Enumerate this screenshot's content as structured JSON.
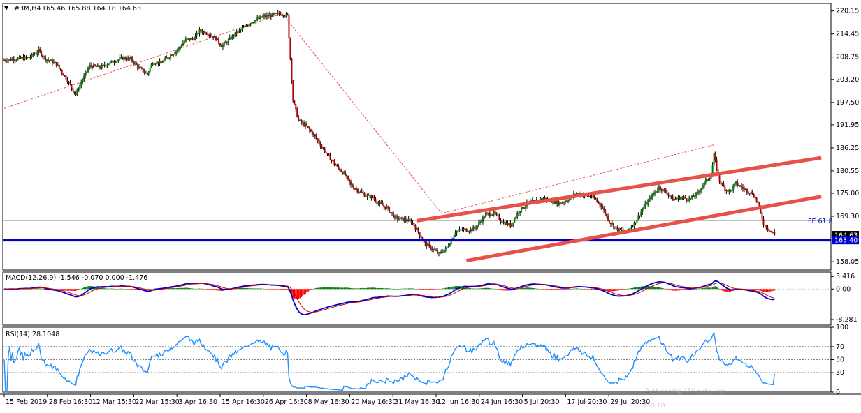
{
  "header": {
    "menu_glyph": "▼",
    "symbol_text": "#3M,H4",
    "ohlc_text": "165.46 165.88 164.18 164.63"
  },
  "chart_data": {
    "type": "candlestick",
    "symbol": "#3M",
    "timeframe": "H4",
    "ohlc": {
      "open": 165.46,
      "high": 165.88,
      "low": 164.18,
      "close": 164.63
    },
    "price_axis": {
      "ylim": [
        156.0,
        222.0
      ],
      "ticks": [
        "220.15",
        "214.45",
        "208.75",
        "203.20",
        "197.50",
        "191.95",
        "186.25",
        "180.55",
        "175.00",
        "169.30",
        "158.05"
      ],
      "tick_values": [
        220.15,
        214.45,
        208.75,
        203.2,
        197.5,
        191.95,
        186.25,
        180.55,
        175.0,
        169.3,
        158.05
      ]
    },
    "time_axis": {
      "labels": [
        "15 Feb 2019",
        "28 Feb 16:30",
        "12 Mar 15:30",
        "22 Mar 15:30",
        "3 Apr 16:30",
        "15 Apr 16:30",
        "26 Apr 16:30",
        "8 May 16:30",
        "20 May 16:30",
        "31 May 16:30",
        "12 Jun 16:30",
        "24 Jun 16:30",
        "5 Jul 20:30",
        "17 Jul 20:30",
        "29 Jul 20:30"
      ]
    },
    "price_path": [
      [
        0,
        208.0
      ],
      [
        8,
        208.3
      ],
      [
        18,
        208.6
      ],
      [
        25,
        210.3
      ],
      [
        30,
        208.3
      ],
      [
        38,
        207.0
      ],
      [
        45,
        203.5
      ],
      [
        52,
        199.5
      ],
      [
        56,
        202.5
      ],
      [
        62,
        206.5
      ],
      [
        70,
        206.2
      ],
      [
        78,
        207.5
      ],
      [
        86,
        208.5
      ],
      [
        92,
        208.2
      ],
      [
        98,
        206.0
      ],
      [
        104,
        204.5
      ],
      [
        108,
        207.5
      ],
      [
        114,
        207.3
      ],
      [
        120,
        209.0
      ],
      [
        126,
        210.5
      ],
      [
        132,
        213.0
      ],
      [
        138,
        213.3
      ],
      [
        142,
        215.2
      ],
      [
        148,
        214.7
      ],
      [
        154,
        213.3
      ],
      [
        158,
        211.5
      ],
      [
        162,
        212.5
      ],
      [
        168,
        214.5
      ],
      [
        174,
        216.0
      ],
      [
        180,
        217.5
      ],
      [
        188,
        218.7
      ],
      [
        196,
        219.2
      ],
      [
        201,
        219.5
      ],
      [
        206,
        219.0
      ],
      [
        210,
        198.0
      ],
      [
        214,
        193.0
      ],
      [
        220,
        191.5
      ],
      [
        226,
        189.0
      ],
      [
        232,
        186.0
      ],
      [
        236,
        184.0
      ],
      [
        242,
        181.5
      ],
      [
        248,
        179.5
      ],
      [
        252,
        177.0
      ],
      [
        258,
        175.5
      ],
      [
        262,
        174.5
      ],
      [
        268,
        174.0
      ],
      [
        272,
        172.5
      ],
      [
        278,
        171.5
      ],
      [
        284,
        169.0
      ],
      [
        290,
        168.5
      ],
      [
        296,
        168.0
      ],
      [
        300,
        166.0
      ],
      [
        306,
        162.5
      ],
      [
        312,
        161.0
      ],
      [
        316,
        160.0
      ],
      [
        322,
        161.5
      ],
      [
        328,
        165.5
      ],
      [
        334,
        166.0
      ],
      [
        340,
        166.0
      ],
      [
        344,
        167.0
      ],
      [
        350,
        169.8
      ],
      [
        356,
        170.0
      ],
      [
        362,
        168.0
      ],
      [
        368,
        167.0
      ],
      [
        374,
        170.5
      ],
      [
        380,
        172.5
      ],
      [
        386,
        173.0
      ],
      [
        392,
        173.8
      ],
      [
        398,
        173.0
      ],
      [
        404,
        172.5
      ],
      [
        410,
        173.5
      ],
      [
        416,
        175.0
      ],
      [
        422,
        174.5
      ],
      [
        428,
        174.0
      ],
      [
        434,
        172.0
      ],
      [
        440,
        168.0
      ],
      [
        446,
        166.0
      ],
      [
        452,
        165.5
      ],
      [
        458,
        167.5
      ],
      [
        464,
        171.0
      ],
      [
        470,
        174.0
      ],
      [
        476,
        176.5
      ],
      [
        482,
        175.0
      ],
      [
        486,
        173.5
      ],
      [
        492,
        174.0
      ],
      [
        498,
        173.5
      ],
      [
        504,
        175.0
      ],
      [
        510,
        178.0
      ],
      [
        514,
        179.5
      ],
      [
        516,
        184.5
      ],
      [
        520,
        178.0
      ],
      [
        524,
        176.0
      ],
      [
        528,
        175.5
      ],
      [
        532,
        177.5
      ],
      [
        538,
        176.0
      ],
      [
        544,
        175.0
      ],
      [
        548,
        172.5
      ],
      [
        552,
        167.5
      ],
      [
        556,
        166.0
      ],
      [
        560,
        164.63
      ]
    ],
    "macd": {
      "label": "MACD(12,26,9) -1.546 -0.070 0.000 -1.476",
      "params": "12,26,9",
      "values": [
        -1.546,
        -0.07,
        0.0,
        -1.476
      ],
      "ylim": [
        -9.8,
        4.6
      ],
      "ticks": [
        "3.416",
        "0.00",
        "-8.281"
      ],
      "tick_values": [
        3.416,
        0.0,
        -8.281
      ]
    },
    "rsi": {
      "label": "RSI(14) 28.1048",
      "period": 14,
      "value": 28.1048,
      "ylim": [
        0,
        100
      ],
      "levels": [
        70,
        50,
        30
      ],
      "ticks": [
        "100",
        "70",
        "50",
        "30",
        "0"
      ],
      "tick_values": [
        100,
        70,
        50,
        30,
        0
      ]
    },
    "price_tags": [
      {
        "label": "164.63",
        "value": 164.63,
        "color": "#000000"
      },
      {
        "label": "163.40",
        "value": 163.4,
        "color": "#0000cc"
      }
    ],
    "fe_label": {
      "text": "FE 61.8",
      "value": 168.3
    },
    "support_level": 163.4,
    "trendlines": [
      {
        "type": "channel",
        "color": "#e8504a",
        "points": [
          [
            300,
            168.2
          ],
          [
            594,
            183.8
          ]
        ]
      },
      {
        "type": "channel",
        "color": "#e8504a",
        "points": [
          [
            336,
            158.3
          ],
          [
            594,
            174.2
          ]
        ]
      },
      {
        "type": "zigzag",
        "color": "#e8504a",
        "dashed": true,
        "points": [
          [
            0,
            196.0
          ],
          [
            202,
            219.5
          ],
          [
            318,
            170.0
          ],
          [
            516,
            187.0
          ]
        ]
      }
    ],
    "colors": {
      "bull": "#007a00",
      "bear": "#b00000",
      "channel": "#e8504a",
      "support": "#0000cc",
      "macd_line": "#0000cc",
      "macd_signal": "#cc0000",
      "rsi_line": "#1e90ff",
      "axis_label": "#000000",
      "fe_label": "#0000cc"
    }
  },
  "watermark": {
    "line1": "Activate Windows",
    "line2": "Go to"
  }
}
